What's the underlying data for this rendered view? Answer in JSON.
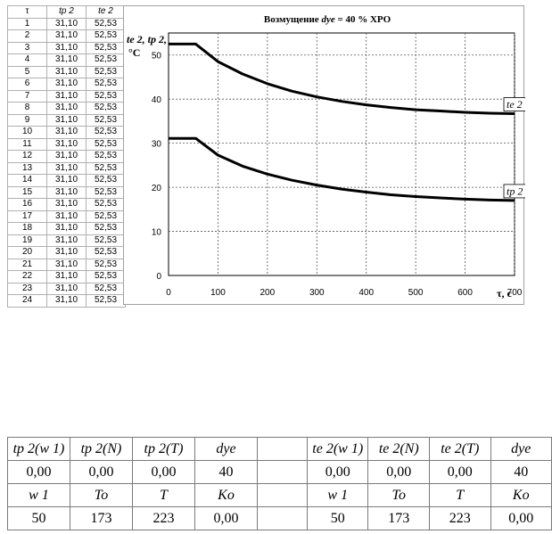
{
  "table": {
    "headers": [
      "τ",
      "tp 2",
      "te 2"
    ],
    "rows": [
      [
        "1",
        "31,10",
        "52,53"
      ],
      [
        "2",
        "31,10",
        "52,53"
      ],
      [
        "3",
        "31,10",
        "52,53"
      ],
      [
        "4",
        "31,10",
        "52,53"
      ],
      [
        "5",
        "31,10",
        "52,53"
      ],
      [
        "6",
        "31,10",
        "52,53"
      ],
      [
        "7",
        "31,10",
        "52,53"
      ],
      [
        "8",
        "31,10",
        "52,53"
      ],
      [
        "9",
        "31,10",
        "52,53"
      ],
      [
        "10",
        "31,10",
        "52,53"
      ],
      [
        "11",
        "31,10",
        "52,53"
      ],
      [
        "12",
        "31,10",
        "52,53"
      ],
      [
        "13",
        "31,10",
        "52,53"
      ],
      [
        "14",
        "31,10",
        "52,53"
      ],
      [
        "15",
        "31,10",
        "52,53"
      ],
      [
        "16",
        "31,10",
        "52,53"
      ],
      [
        "17",
        "31,10",
        "52,53"
      ],
      [
        "18",
        "31,10",
        "52,53"
      ],
      [
        "19",
        "31,10",
        "52,53"
      ],
      [
        "20",
        "31,10",
        "52,53"
      ],
      [
        "21",
        "31,10",
        "52,53"
      ],
      [
        "22",
        "31,10",
        "52,53"
      ],
      [
        "23",
        "31,10",
        "52,53"
      ],
      [
        "24",
        "31,10",
        "52,53"
      ]
    ]
  },
  "chart_data": {
    "type": "line",
    "title_prefix": "Возмущение ",
    "title_var": "dye",
    "title_suffix": " = 40  % ХРО",
    "ylabel_line1": "te 2, tp 2,",
    "ylabel_line2": "°C",
    "xlabel": "τ, с",
    "xlim": [
      0,
      700
    ],
    "ylim": [
      0,
      55
    ],
    "xticks": [
      0,
      100,
      200,
      300,
      400,
      500,
      600,
      700
    ],
    "yticks": [
      0,
      10,
      20,
      30,
      40,
      50
    ],
    "grid": true,
    "series": [
      {
        "name": "te 2",
        "x": [
          0,
          55,
          100,
          150,
          200,
          250,
          300,
          350,
          400,
          450,
          500,
          550,
          600,
          650,
          700
        ],
        "y": [
          52.5,
          52.5,
          48.5,
          45.7,
          43.5,
          41.8,
          40.5,
          39.5,
          38.7,
          38.1,
          37.6,
          37.3,
          37.0,
          36.8,
          36.7
        ]
      },
      {
        "name": "tp 2",
        "x": [
          0,
          55,
          100,
          150,
          200,
          250,
          300,
          350,
          400,
          450,
          500,
          550,
          600,
          650,
          700
        ],
        "y": [
          31.1,
          31.1,
          27.3,
          24.8,
          23.0,
          21.6,
          20.5,
          19.6,
          18.9,
          18.3,
          17.9,
          17.6,
          17.3,
          17.1,
          17.0
        ]
      }
    ]
  },
  "params_left": {
    "row1": [
      "tp 2(w 1)",
      "tp 2(N)",
      "tp 2(T)",
      "dye"
    ],
    "row2": [
      "0,00",
      "0,00",
      "0,00",
      "40"
    ],
    "row3": [
      "w 1",
      "To",
      "T",
      "Ko"
    ],
    "row4": [
      "50",
      "173",
      "223",
      "0,00"
    ]
  },
  "params_right": {
    "row1": [
      "te 2(w 1)",
      "te 2(N)",
      "te 2(T)",
      "dye"
    ],
    "row2": [
      "0,00",
      "0,00",
      "0,00",
      "40"
    ],
    "row3": [
      "w 1",
      "To",
      "T",
      "Ko"
    ],
    "row4": [
      "50",
      "173",
      "223",
      "0,00"
    ]
  }
}
